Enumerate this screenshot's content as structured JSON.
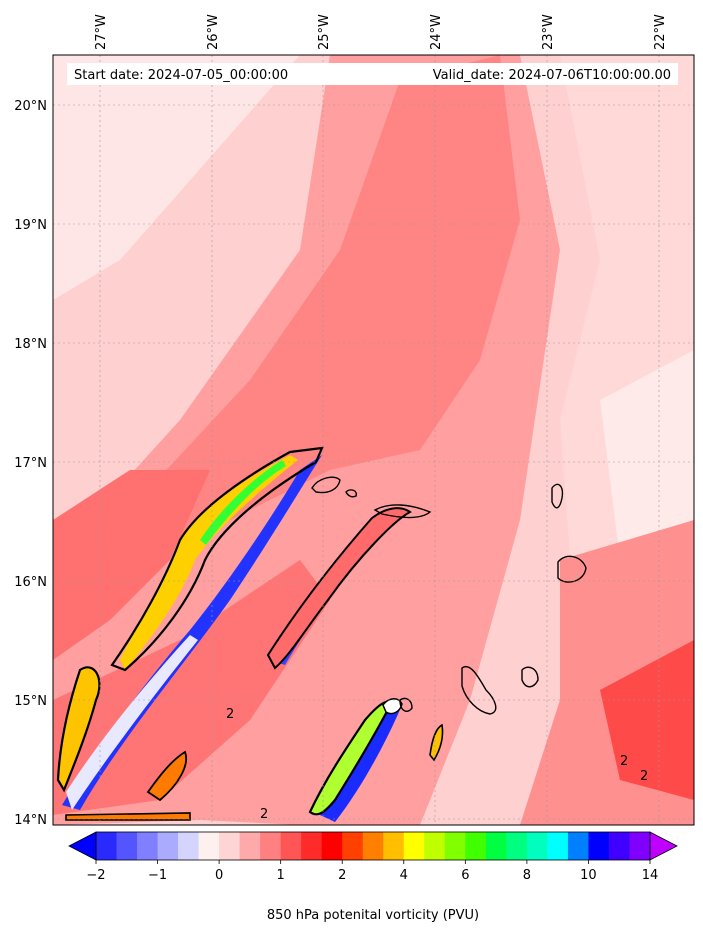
{
  "annotations": {
    "start_date": "Start date: 2024-07-05_00:00:00",
    "valid_date": "Valid_date: 2024-07-06T10:00:00.00"
  },
  "map": {
    "lon_labels": [
      "27°W",
      "26°W",
      "25°W",
      "24°W",
      "23°W",
      "22°W"
    ],
    "lat_labels": [
      "20°N",
      "19°N",
      "18°N",
      "17°N",
      "16°N",
      "15°N",
      "14°N"
    ],
    "lon_range": [
      -27.2,
      -21.9
    ],
    "lat_range": [
      13.95,
      20.4
    ],
    "contour_label": "2"
  },
  "colorbar": {
    "label": "850 hPa potenital vorticity (PVU)",
    "tick_labels": [
      "−2",
      "−1",
      "0",
      "1",
      "2",
      "4",
      "6",
      "8",
      "10",
      "14"
    ],
    "colors": [
      "#0000ff",
      "#2a2aff",
      "#5555ff",
      "#7f7fff",
      "#aaaaff",
      "#d4d4ff",
      "#fff0f0",
      "#ffd4d4",
      "#ffaaaa",
      "#ff8080",
      "#ff5555",
      "#ff2a2a",
      "#ff0000",
      "#ff4000",
      "#ff8000",
      "#ffbf00",
      "#ffff00",
      "#bfff00",
      "#80ff00",
      "#40ff00",
      "#00ff40",
      "#00ff80",
      "#00ffbf",
      "#00ffff",
      "#0080ff",
      "#0000ff",
      "#4000ff",
      "#8000ff",
      "#bf00ff"
    ]
  }
}
